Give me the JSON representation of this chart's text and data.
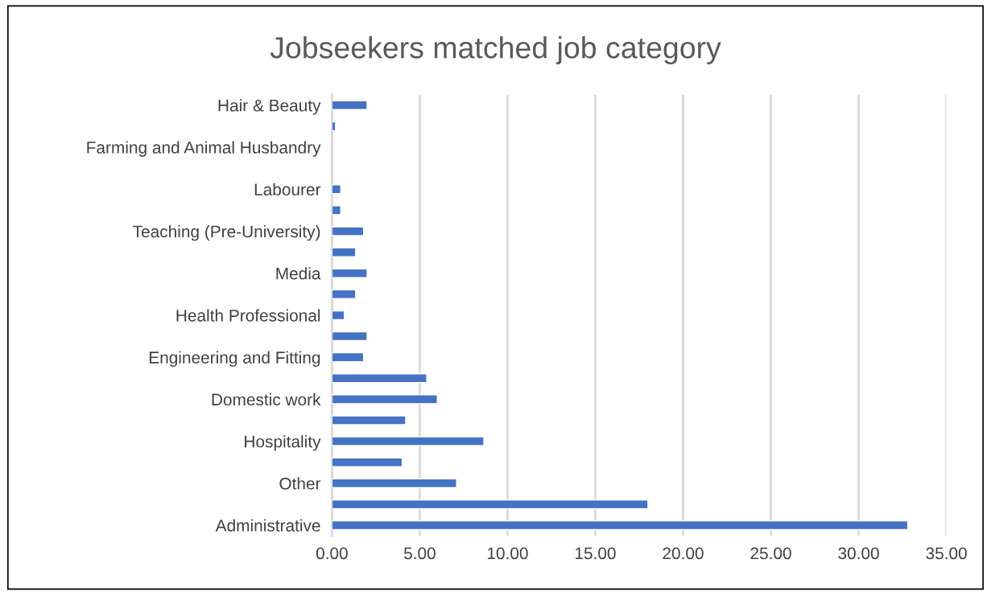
{
  "chart_data": {
    "type": "bar",
    "title": "Jobseekers matched job category",
    "orientation": "horizontal",
    "categories": [
      "Hair & Beauty",
      null,
      "Farming and Animal Husbandry",
      null,
      "Labourer",
      null,
      "Teaching (Pre-University)",
      null,
      "Media",
      null,
      "Health Professional",
      null,
      "Engineering and Fitting",
      null,
      "Domestic work",
      null,
      "Hospitality",
      null,
      "Other",
      null,
      "Administrative"
    ],
    "values": [
      2.0,
      0.2,
      null,
      null,
      0.5,
      0.5,
      1.8,
      1.35,
      2.0,
      1.35,
      0.7,
      2.0,
      1.8,
      5.4,
      6.0,
      4.2,
      8.65,
      4.0,
      7.1,
      18.0,
      32.8
    ],
    "color": "#4472c4",
    "xlim": [
      0,
      35
    ],
    "xticks": [
      {
        "value": 0,
        "label": "0.00"
      },
      {
        "value": 5,
        "label": "5.00"
      },
      {
        "value": 10,
        "label": "10.00"
      },
      {
        "value": 15,
        "label": "15.00"
      },
      {
        "value": 20,
        "label": "20.00"
      },
      {
        "value": 25,
        "label": "25.00"
      },
      {
        "value": 30,
        "label": "30.00"
      },
      {
        "value": 35,
        "label": "35.00"
      }
    ],
    "grid": "x",
    "legend": false
  }
}
